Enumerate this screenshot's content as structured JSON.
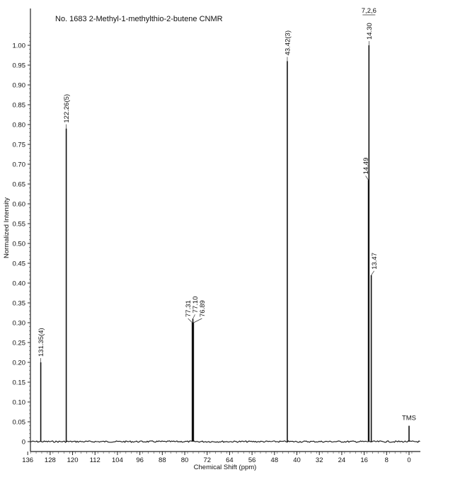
{
  "chart_data": {
    "type": "line",
    "title": "No. 1683  2-Methyl-1-methylthio-2-butene CNMR",
    "xlabel": "Chemical Shift (ppm)",
    "ylabel": "Normalized Intensity",
    "xlim": [
      138,
      -1
    ],
    "ylim": [
      0,
      1.04
    ],
    "x_ticks": [
      136,
      128,
      120,
      112,
      104,
      96,
      88,
      80,
      72,
      64,
      56,
      48,
      40,
      32,
      24,
      16,
      8,
      0
    ],
    "y_ticks": [
      0,
      0.05,
      0.1,
      0.15,
      0.2,
      0.25,
      0.3,
      0.35,
      0.4,
      0.45,
      0.5,
      0.55,
      0.6,
      0.65,
      0.7,
      0.75,
      0.8,
      0.85,
      0.9,
      0.95,
      1.0
    ],
    "y_tick_labels": [
      "0",
      "0.05",
      "0.10",
      "0.15",
      "0.20",
      "0.25",
      "0.30",
      "0.35",
      "0.40",
      "0.45",
      "0.50",
      "0.55",
      "0.60",
      "0.65",
      "0.70",
      "0.75",
      "0.80",
      "0.85",
      "0.90",
      "0.95",
      "1.00"
    ],
    "peaks": [
      {
        "shift": 131.35,
        "intensity": 0.2,
        "label": "131.35(4)"
      },
      {
        "shift": 122.26,
        "intensity": 0.79,
        "label": "122.26(5)"
      },
      {
        "shift": 77.31,
        "intensity": 0.3,
        "label": "77.31"
      },
      {
        "shift": 77.1,
        "intensity": 0.31,
        "label": "77.10"
      },
      {
        "shift": 76.89,
        "intensity": 0.3,
        "label": "76.89"
      },
      {
        "shift": 43.42,
        "intensity": 0.96,
        "label": "43.42(3)"
      },
      {
        "shift": 14.49,
        "intensity": 0.66,
        "label": "14.49"
      },
      {
        "shift": 14.3,
        "intensity": 1.0,
        "label": "14.30"
      },
      {
        "shift": 13.47,
        "intensity": 0.42,
        "label": "13.47"
      },
      {
        "shift": 0.0,
        "intensity": 0.04,
        "label": "TMS"
      }
    ],
    "group_label": "7,2,6",
    "grid": false
  }
}
